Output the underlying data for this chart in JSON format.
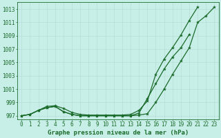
{
  "title": "Graphe pression niveau de la mer (hPa)",
  "background_color": "#c8eee8",
  "grid_color": "#b8ddd6",
  "line_color": "#1a6b2a",
  "ylim": [
    996.5,
    1014.0
  ],
  "yticks": [
    997,
    999,
    1001,
    1003,
    1005,
    1007,
    1009,
    1011,
    1013
  ],
  "xlim": [
    -0.5,
    23.5
  ],
  "xticks": [
    0,
    1,
    2,
    3,
    4,
    5,
    6,
    7,
    8,
    9,
    10,
    11,
    12,
    13,
    14,
    15,
    16,
    17,
    18,
    19,
    20,
    21,
    22,
    23
  ],
  "series1": [
    997,
    997.2,
    997.8,
    998.2,
    998.4,
    997.6,
    997.2,
    997.0,
    997.0,
    997.0,
    997.0,
    997.0,
    997.0,
    997.0,
    997.1,
    997.3,
    999.0,
    1001.0,
    1003.2,
    1005.2,
    1007.2,
    1011.0,
    1012.0,
    1013.3
  ],
  "series2": [
    997,
    997.2,
    997.8,
    998.4,
    998.5,
    998.1,
    997.5,
    997.2,
    997.1,
    997.1,
    997.1,
    997.1,
    997.1,
    997.2,
    997.8,
    999.2,
    1003.2,
    1005.5,
    1007.2,
    1009.1,
    1011.3,
    1013.3,
    null,
    null
  ],
  "series3": [
    997,
    997.2,
    997.8,
    998.2,
    998.4,
    997.6,
    997.2,
    997.0,
    997.0,
    997.0,
    997.0,
    997.0,
    997.0,
    997.0,
    997.4,
    999.6,
    1001.8,
    1004.0,
    1005.8,
    1007.2,
    1009.2,
    null,
    null,
    null
  ],
  "title_fontsize": 6.5,
  "tick_fontsize": 5.5,
  "linewidth": 0.9,
  "markersize": 3.0
}
